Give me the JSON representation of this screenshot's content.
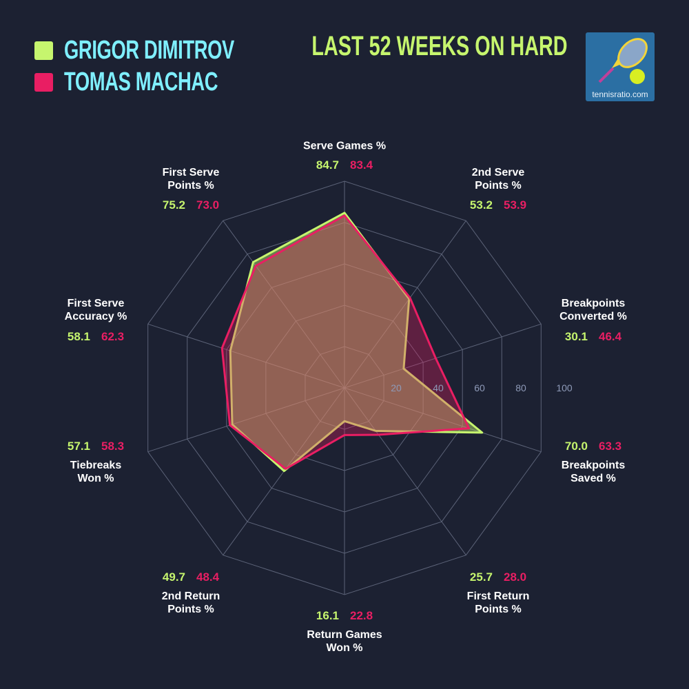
{
  "title": "LAST 52 WEEKS ON HARD",
  "logo": {
    "text": "tennisratio.com"
  },
  "chart_data": {
    "type": "radar",
    "title": "LAST 52 WEEKS ON HARD",
    "axes": [
      {
        "label": [
          "Serve Games %"
        ]
      },
      {
        "label": [
          "2nd Serve",
          "Points %"
        ]
      },
      {
        "label": [
          "Breakpoints",
          "Converted %"
        ]
      },
      {
        "label": [
          "Breakpoints",
          "Saved %"
        ]
      },
      {
        "label": [
          "First Return",
          "Points %"
        ]
      },
      {
        "label": [
          "Return Games",
          "Won %"
        ]
      },
      {
        "label": [
          "2nd Return",
          "Points %"
        ]
      },
      {
        "label": [
          "Tiebreaks",
          "Won %"
        ]
      },
      {
        "label": [
          "First Serve",
          "Accuracy %"
        ]
      },
      {
        "label": [
          "First Serve",
          "Points %"
        ]
      }
    ],
    "series": [
      {
        "name": "GRIGOR DIMITROV",
        "color": "#c6f56e",
        "values": [
          84.7,
          53.2,
          30.1,
          70.0,
          25.7,
          16.1,
          49.7,
          57.1,
          58.1,
          75.2
        ],
        "labels": [
          "84.7",
          "53.2",
          "30.1",
          "70.0",
          "25.7",
          "16.1",
          "49.7",
          "57.1",
          "58.1",
          "75.2"
        ]
      },
      {
        "name": "TOMAS MACHAC",
        "color": "#e91e63",
        "values": [
          83.4,
          53.9,
          46.4,
          63.3,
          28.0,
          22.8,
          48.4,
          58.3,
          62.3,
          73.0
        ],
        "labels": [
          "83.4",
          "53.9",
          "46.4",
          "63.3",
          "28.0",
          "22.8",
          "48.4",
          "58.3",
          "62.3",
          "73.0"
        ]
      }
    ],
    "range": [
      0,
      100
    ],
    "ticks": [
      "20",
      "40",
      "60",
      "80",
      "100"
    ],
    "grid": true,
    "legend": "top-left"
  },
  "colors": {
    "background": "#1c2132",
    "legend_text": "#7fefff",
    "title": "#c6f56e",
    "grid": "#5c6378"
  }
}
